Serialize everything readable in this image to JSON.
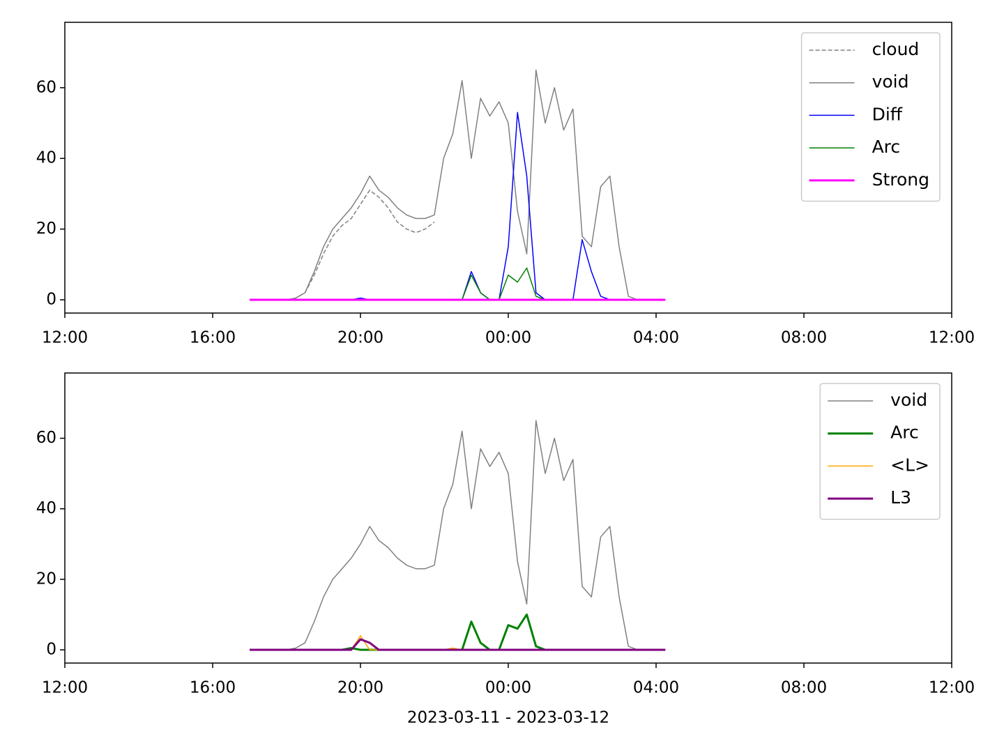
{
  "chart_data": [
    {
      "type": "line",
      "x": [
        "2023-03-11T17:00",
        "2023-03-11T17:15",
        "2023-03-11T17:30",
        "2023-03-11T17:45",
        "2023-03-11T18:00",
        "2023-03-11T18:15",
        "2023-03-11T18:30",
        "2023-03-11T18:45",
        "2023-03-11T19:00",
        "2023-03-11T19:15",
        "2023-03-11T19:30",
        "2023-03-11T19:45",
        "2023-03-11T20:00",
        "2023-03-11T20:15",
        "2023-03-11T20:30",
        "2023-03-11T20:45",
        "2023-03-11T21:00",
        "2023-03-11T21:15",
        "2023-03-11T21:30",
        "2023-03-11T21:45",
        "2023-03-11T22:00",
        "2023-03-11T22:15",
        "2023-03-11T22:30",
        "2023-03-11T22:45",
        "2023-03-11T23:00",
        "2023-03-11T23:15",
        "2023-03-11T23:30",
        "2023-03-11T23:45",
        "2023-03-12T00:00",
        "2023-03-12T00:15",
        "2023-03-12T00:30",
        "2023-03-12T00:45",
        "2023-03-12T01:00",
        "2023-03-12T01:15",
        "2023-03-12T01:30",
        "2023-03-12T01:45",
        "2023-03-12T02:00",
        "2023-03-12T02:15",
        "2023-03-12T02:30",
        "2023-03-12T02:45",
        "2023-03-12T03:00",
        "2023-03-12T03:15",
        "2023-03-12T03:30",
        "2023-03-12T03:45",
        "2023-03-12T04:00",
        "2023-03-12T04:15"
      ],
      "series": [
        {
          "name": "cloud",
          "color": "#808080",
          "style": "dashed",
          "width": 1.5,
          "values": [
            0,
            0,
            0,
            0,
            0,
            0.5,
            2,
            7,
            13,
            18,
            21,
            23,
            27,
            31,
            29,
            26,
            22,
            20,
            19,
            20,
            22,
            null,
            null,
            null,
            null,
            null,
            null,
            null,
            null,
            null,
            null,
            null,
            null,
            null,
            null,
            null,
            null,
            null,
            null,
            null,
            null,
            null,
            null,
            null,
            null,
            null
          ]
        },
        {
          "name": "void",
          "color": "#808080",
          "style": "solid",
          "width": 1.5,
          "values": [
            0,
            0,
            0,
            0,
            0,
            0.5,
            2,
            8,
            15,
            20,
            23,
            26,
            30,
            35,
            31,
            29,
            26,
            24,
            23,
            23,
            24,
            40,
            47,
            62,
            40,
            57,
            52,
            56,
            50,
            25,
            13,
            65,
            50,
            60,
            48,
            54,
            18,
            15,
            32,
            35,
            15,
            1,
            0,
            0,
            0,
            0
          ]
        },
        {
          "name": "Diff",
          "color": "#0000ff",
          "style": "solid",
          "width": 1.5,
          "values": [
            0,
            0,
            0,
            0,
            0,
            0,
            0,
            0,
            0,
            0,
            0,
            0,
            0.5,
            0,
            0,
            0,
            0,
            0,
            0,
            0,
            0,
            0,
            0,
            0,
            8,
            2,
            0,
            0,
            15,
            53,
            35,
            2,
            0,
            0,
            0,
            0,
            17,
            8,
            1,
            0,
            0,
            0,
            0,
            0,
            0,
            0
          ]
        },
        {
          "name": "Arc",
          "color": "#008000",
          "style": "solid",
          "width": 1.5,
          "values": [
            0,
            0,
            0,
            0,
            0,
            0,
            0,
            0,
            0,
            0,
            0,
            0,
            0,
            0,
            0,
            0,
            0,
            0,
            0,
            0,
            0,
            0,
            0,
            0,
            7,
            2,
            0,
            0,
            7,
            5,
            9,
            1,
            0,
            0,
            0,
            0,
            0,
            0,
            0,
            0,
            0,
            0,
            0,
            0,
            0,
            0
          ]
        },
        {
          "name": "Strong",
          "color": "#ff00ff",
          "style": "solid",
          "width": 3,
          "values": [
            0,
            0,
            0,
            0,
            0,
            0,
            0,
            0,
            0,
            0,
            0,
            0,
            0,
            0,
            0,
            0,
            0,
            0,
            0,
            0,
            0,
            0,
            0,
            0,
            0,
            0,
            0,
            0,
            0,
            0,
            0,
            0,
            0,
            0,
            0,
            0,
            0,
            0,
            0,
            0,
            0,
            0,
            0,
            0,
            0,
            0
          ]
        }
      ],
      "xlim": [
        "2023-03-11T12:00",
        "2023-03-12T12:00"
      ],
      "xticks": [
        {
          "value": "2023-03-11T12:00",
          "label": "12:00"
        },
        {
          "value": "2023-03-11T16:00",
          "label": "16:00"
        },
        {
          "value": "2023-03-11T20:00",
          "label": "20:00"
        },
        {
          "value": "2023-03-12T00:00",
          "label": "00:00"
        },
        {
          "value": "2023-03-12T04:00",
          "label": "04:00"
        },
        {
          "value": "2023-03-12T08:00",
          "label": "08:00"
        },
        {
          "value": "2023-03-12T12:00",
          "label": "12:00"
        }
      ],
      "ylim": [
        -3.75,
        78.5
      ],
      "yticks": [
        0,
        20,
        40,
        60
      ],
      "legend": "upper right"
    },
    {
      "type": "line",
      "x": [
        "2023-03-11T17:00",
        "2023-03-11T17:15",
        "2023-03-11T17:30",
        "2023-03-11T17:45",
        "2023-03-11T18:00",
        "2023-03-11T18:15",
        "2023-03-11T18:30",
        "2023-03-11T18:45",
        "2023-03-11T19:00",
        "2023-03-11T19:15",
        "2023-03-11T19:30",
        "2023-03-11T19:45",
        "2023-03-11T20:00",
        "2023-03-11T20:15",
        "2023-03-11T20:30",
        "2023-03-11T20:45",
        "2023-03-11T21:00",
        "2023-03-11T21:15",
        "2023-03-11T21:30",
        "2023-03-11T21:45",
        "2023-03-11T22:00",
        "2023-03-11T22:15",
        "2023-03-11T22:30",
        "2023-03-11T22:45",
        "2023-03-11T23:00",
        "2023-03-11T23:15",
        "2023-03-11T23:30",
        "2023-03-11T23:45",
        "2023-03-12T00:00",
        "2023-03-12T00:15",
        "2023-03-12T00:30",
        "2023-03-12T00:45",
        "2023-03-12T01:00",
        "2023-03-12T01:15",
        "2023-03-12T01:30",
        "2023-03-12T01:45",
        "2023-03-12T02:00",
        "2023-03-12T02:15",
        "2023-03-12T02:30",
        "2023-03-12T02:45",
        "2023-03-12T03:00",
        "2023-03-12T03:15",
        "2023-03-12T03:30",
        "2023-03-12T03:45",
        "2023-03-12T04:00",
        "2023-03-12T04:15"
      ],
      "series": [
        {
          "name": "void",
          "color": "#808080",
          "style": "solid",
          "width": 1.5,
          "values": [
            0,
            0,
            0,
            0,
            0,
            0.5,
            2,
            8,
            15,
            20,
            23,
            26,
            30,
            35,
            31,
            29,
            26,
            24,
            23,
            23,
            24,
            40,
            47,
            62,
            40,
            57,
            52,
            56,
            50,
            25,
            13,
            65,
            50,
            60,
            48,
            54,
            18,
            15,
            32,
            35,
            15,
            1,
            0,
            0,
            0,
            0
          ]
        },
        {
          "name": "Arc",
          "color": "#008000",
          "style": "solid",
          "width": 3,
          "values": [
            0,
            0,
            0,
            0,
            0,
            0,
            0,
            0,
            0,
            0,
            0,
            0.5,
            0,
            0,
            0,
            0,
            0,
            0,
            0,
            0,
            0,
            0,
            0,
            0,
            8,
            2,
            0,
            0,
            7,
            6,
            10,
            1,
            0,
            0,
            0,
            0,
            0,
            0,
            0,
            0,
            0,
            0,
            0,
            0,
            0,
            0
          ]
        },
        {
          "name": "<L>",
          "color": "#ffa500",
          "style": "solid",
          "width": 1.5,
          "values": [
            0,
            0,
            0,
            0,
            0,
            0,
            0,
            0,
            0,
            0,
            0,
            0,
            4,
            0,
            0,
            0,
            0,
            0,
            0,
            0,
            0,
            0,
            0.5,
            0,
            0,
            0,
            0,
            0,
            0,
            0,
            0,
            0,
            0,
            0,
            0,
            0,
            0,
            0,
            0,
            0,
            0,
            0,
            0,
            0,
            0,
            0
          ]
        },
        {
          "name": "L3",
          "color": "#800080",
          "style": "solid",
          "width": 3,
          "values": [
            0,
            0,
            0,
            0,
            0,
            0,
            0,
            0,
            0,
            0,
            0,
            0,
            3,
            2,
            0,
            0,
            0,
            0,
            0,
            0,
            0,
            0,
            0,
            0,
            0,
            0,
            0,
            0,
            0,
            0,
            0,
            0,
            0,
            0,
            0,
            0,
            0,
            0,
            0,
            0,
            0,
            0,
            0,
            0,
            0,
            0
          ]
        }
      ],
      "xlim": [
        "2023-03-11T12:00",
        "2023-03-12T12:00"
      ],
      "xticks": [
        {
          "value": "2023-03-11T12:00",
          "label": "12:00"
        },
        {
          "value": "2023-03-11T16:00",
          "label": "16:00"
        },
        {
          "value": "2023-03-11T20:00",
          "label": "20:00"
        },
        {
          "value": "2023-03-12T00:00",
          "label": "00:00"
        },
        {
          "value": "2023-03-12T04:00",
          "label": "04:00"
        },
        {
          "value": "2023-03-12T08:00",
          "label": "08:00"
        },
        {
          "value": "2023-03-12T12:00",
          "label": "12:00"
        }
      ],
      "ylim": [
        -3.75,
        78.5
      ],
      "yticks": [
        0,
        20,
        40,
        60
      ],
      "legend": "upper right",
      "xlabel": "2023-03-11 - 2023-03-12"
    }
  ]
}
